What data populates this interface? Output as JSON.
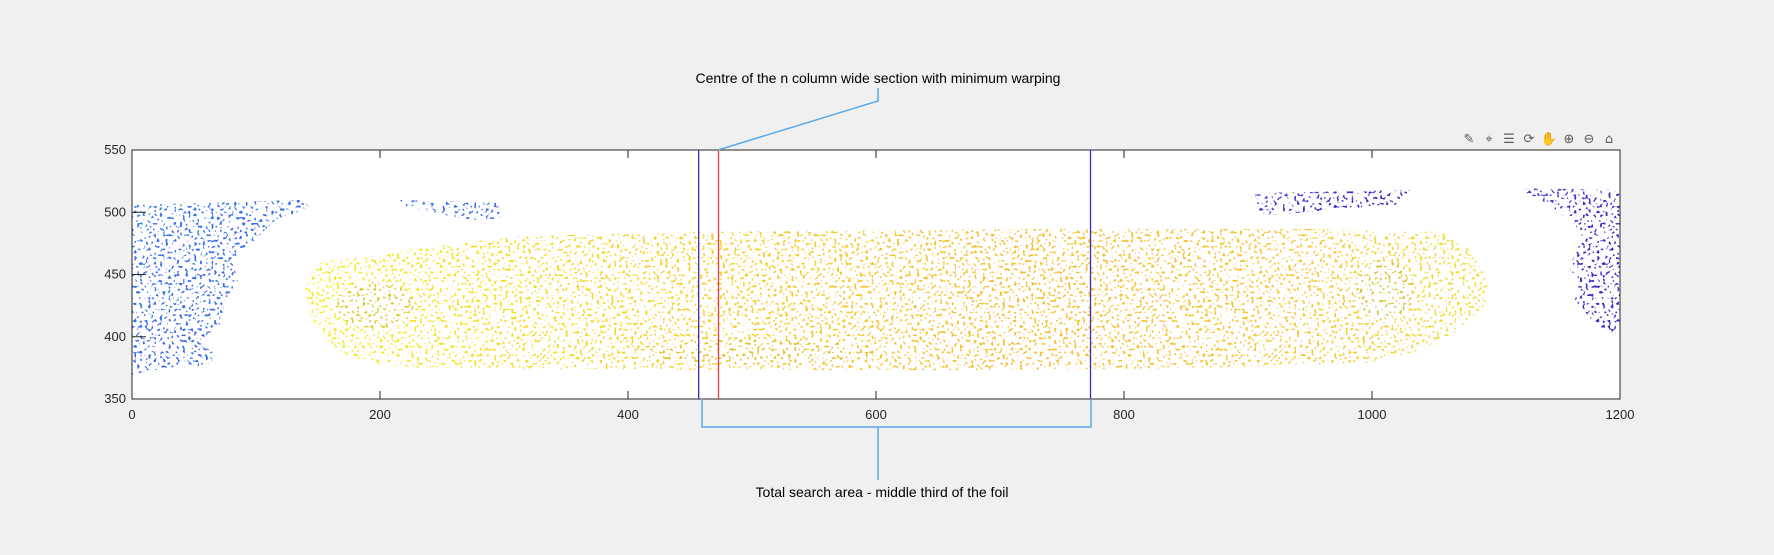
{
  "chart_data": {
    "type": "heatmap",
    "xlim": [
      0,
      1200
    ],
    "ylim": [
      350,
      550
    ],
    "x_ticks": [
      0,
      200,
      400,
      600,
      800,
      1000,
      1200
    ],
    "y_ticks": [
      350,
      400,
      450,
      500,
      550
    ],
    "x_tick_labels": [
      "0",
      "200",
      "400",
      "600",
      "800",
      "1000",
      "1200"
    ],
    "y_tick_labels": [
      "350",
      "400",
      "450",
      "500",
      "550"
    ],
    "grid": false,
    "colors": {
      "background": "#f0f0f0",
      "axes_bg": "#ffffff",
      "foil_high": "#f6f01c",
      "foil_mid": "#f7be33",
      "foil_olive": "#cbb83a",
      "low_blue": "#3b6cf2",
      "low_violet": "#4030c8",
      "search_line": "#3a2fb0",
      "min_warp_line": "#e04040",
      "callout": "#5aa8e8"
    },
    "vertical_lines": [
      {
        "x": 457,
        "role": "search-start"
      },
      {
        "x": 473,
        "role": "min-warping-centre"
      },
      {
        "x": 773,
        "role": "search-end"
      }
    ],
    "annotations": {
      "top": "Centre of the n column wide section with minimum warping",
      "bottom": "Total search area - middle third of the foil"
    }
  },
  "toolbar": {
    "icons": [
      {
        "name": "brush-icon",
        "glyph": "✎"
      },
      {
        "name": "data-tips-icon",
        "glyph": "⌖"
      },
      {
        "name": "data-cursor-icon",
        "glyph": "☰"
      },
      {
        "name": "rotate-icon",
        "glyph": "⟳"
      },
      {
        "name": "pan-hand-icon",
        "glyph": "✋"
      },
      {
        "name": "zoom-in-icon",
        "glyph": "⊕"
      },
      {
        "name": "zoom-out-icon",
        "glyph": "⊖"
      },
      {
        "name": "home-icon",
        "glyph": "⌂"
      }
    ]
  }
}
